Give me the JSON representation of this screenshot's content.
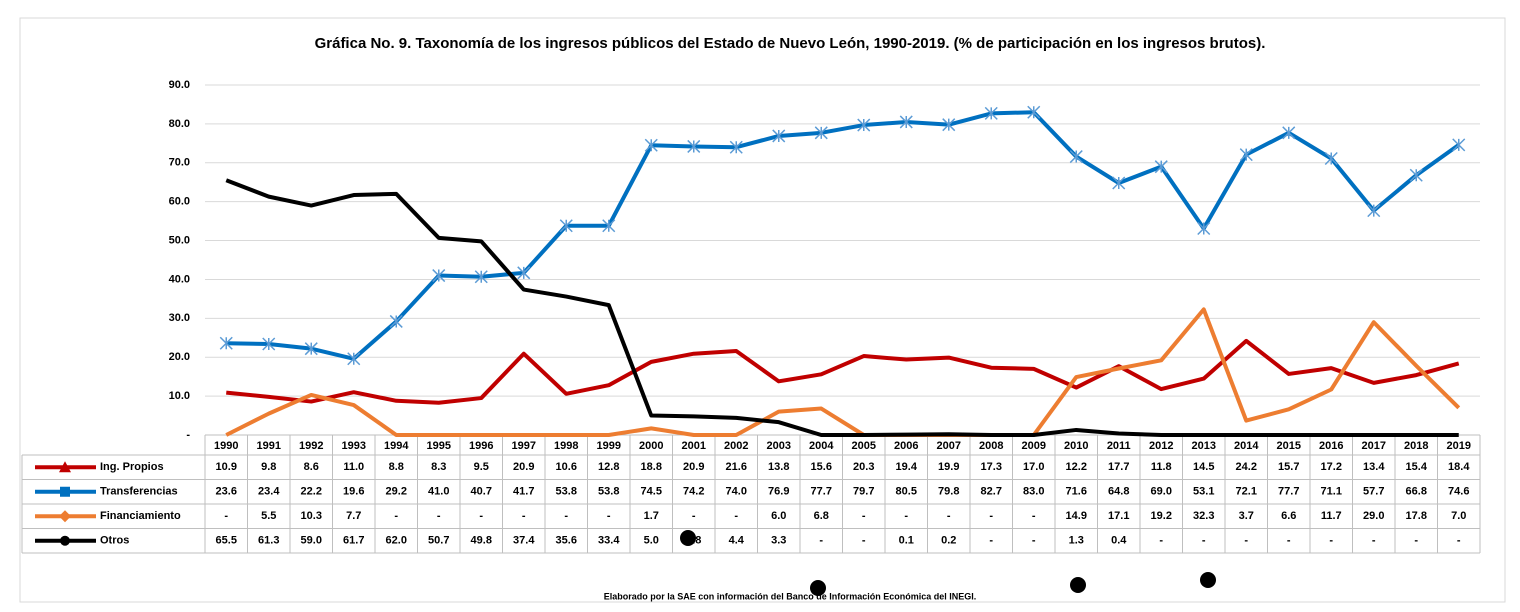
{
  "chart_data": {
    "type": "line",
    "title": "Gráfica No. 9. Taxonomía de los ingresos públicos del Estado de Nuevo León, 1990-2019. (% de participación en los ingresos brutos).",
    "footnote": "Elaborado por la SAE con información del Banco de Información Económica del INEGI.",
    "categories": [
      "1990",
      "1991",
      "1992",
      "1993",
      "1994",
      "1995",
      "1996",
      "1997",
      "1998",
      "1999",
      "2000",
      "2001",
      "2002",
      "2003",
      "2004",
      "2005",
      "2006",
      "2007",
      "2008",
      "2009",
      "2010",
      "2011",
      "2012",
      "2013",
      "2014",
      "2015",
      "2016",
      "2017",
      "2018",
      "2019"
    ],
    "ylim": [
      0,
      90
    ],
    "yticks": [
      {
        "value": 0,
        "label": "-"
      },
      {
        "value": 10,
        "label": "10.0"
      },
      {
        "value": 20,
        "label": "20.0"
      },
      {
        "value": 30,
        "label": "30.0"
      },
      {
        "value": 40,
        "label": "40.0"
      },
      {
        "value": 50,
        "label": "50.0"
      },
      {
        "value": 60,
        "label": "60.0"
      },
      {
        "value": 70,
        "label": "70.0"
      },
      {
        "value": 80,
        "label": "80.0"
      },
      {
        "value": 90,
        "label": "90.0"
      }
    ],
    "grid": true,
    "series": [
      {
        "name": "Ing. Propios",
        "color": "#c00000",
        "legend_marker": "triangle",
        "values": [
          10.9,
          9.8,
          8.6,
          11.0,
          8.8,
          8.3,
          9.5,
          20.9,
          10.6,
          12.8,
          18.8,
          20.9,
          21.6,
          13.8,
          15.6,
          20.3,
          19.4,
          19.9,
          17.3,
          17.0,
          12.2,
          17.7,
          11.8,
          14.5,
          24.2,
          15.7,
          17.2,
          13.4,
          15.4,
          18.4
        ],
        "value_labels": [
          "10.9",
          "9.8",
          "8.6",
          "11.0",
          "8.8",
          "8.3",
          "9.5",
          "20.9",
          "10.6",
          "12.8",
          "18.8",
          "20.9",
          "21.6",
          "13.8",
          "15.6",
          "20.3",
          "19.4",
          "19.9",
          "17.3",
          "17.0",
          "12.2",
          "17.7",
          "11.8",
          "14.5",
          "24.2",
          "15.7",
          "17.2",
          "13.4",
          "15.4",
          "18.4"
        ]
      },
      {
        "name": "Transferencias",
        "color": "#0070c0",
        "legend_marker": "square",
        "values": [
          23.6,
          23.4,
          22.2,
          19.6,
          29.2,
          41.0,
          40.7,
          41.7,
          53.8,
          53.8,
          74.5,
          74.2,
          74.0,
          76.9,
          77.7,
          79.7,
          80.5,
          79.8,
          82.7,
          83.0,
          71.6,
          64.8,
          69.0,
          53.1,
          72.1,
          77.7,
          71.1,
          57.7,
          66.8,
          74.6
        ],
        "value_labels": [
          "23.6",
          "23.4",
          "22.2",
          "19.6",
          "29.2",
          "41.0",
          "40.7",
          "41.7",
          "53.8",
          "53.8",
          "74.5",
          "74.2",
          "74.0",
          "76.9",
          "77.7",
          "79.7",
          "80.5",
          "79.8",
          "82.7",
          "83.0",
          "71.6",
          "64.8",
          "69.0",
          "53.1",
          "72.1",
          "77.7",
          "71.1",
          "57.7",
          "66.8",
          "74.6"
        ]
      },
      {
        "name": "Financiamiento",
        "color": "#ed7d31",
        "legend_marker": "diamond",
        "values": [
          0,
          5.5,
          10.3,
          7.7,
          0,
          0,
          0,
          0,
          0,
          0,
          1.7,
          0,
          0,
          6.0,
          6.8,
          0,
          0,
          0,
          0,
          0,
          14.9,
          17.1,
          19.2,
          32.3,
          3.7,
          6.6,
          11.7,
          29.0,
          17.8,
          7.0
        ],
        "value_labels": [
          "-",
          "5.5",
          "10.3",
          "7.7",
          "-",
          "-",
          "-",
          "-",
          "-",
          "-",
          "1.7",
          "-",
          "-",
          "6.0",
          "6.8",
          "-",
          "-",
          "-",
          "-",
          "-",
          "14.9",
          "17.1",
          "19.2",
          "32.3",
          "3.7",
          "6.6",
          "11.7",
          "29.0",
          "17.8",
          "7.0"
        ]
      },
      {
        "name": "Otros",
        "color": "#000000",
        "legend_marker": "circle",
        "values": [
          65.5,
          61.3,
          59.0,
          61.7,
          62.0,
          50.7,
          49.8,
          37.4,
          35.6,
          33.4,
          5.0,
          4.8,
          4.4,
          3.3,
          0,
          0,
          0.1,
          0.2,
          0,
          0,
          1.3,
          0.4,
          0,
          0,
          0,
          0,
          0,
          0,
          0,
          0
        ],
        "value_labels": [
          "65.5",
          "61.3",
          "59.0",
          "61.7",
          "62.0",
          "50.7",
          "49.8",
          "37.4",
          "35.6",
          "33.4",
          "5.0",
          "4.8",
          "4.4",
          "3.3",
          "-",
          "-",
          "0.1",
          "0.2",
          "-",
          "-",
          "1.3",
          "0.4",
          "-",
          "-",
          "-",
          "-",
          "-",
          "-",
          "-",
          "-"
        ]
      }
    ]
  }
}
